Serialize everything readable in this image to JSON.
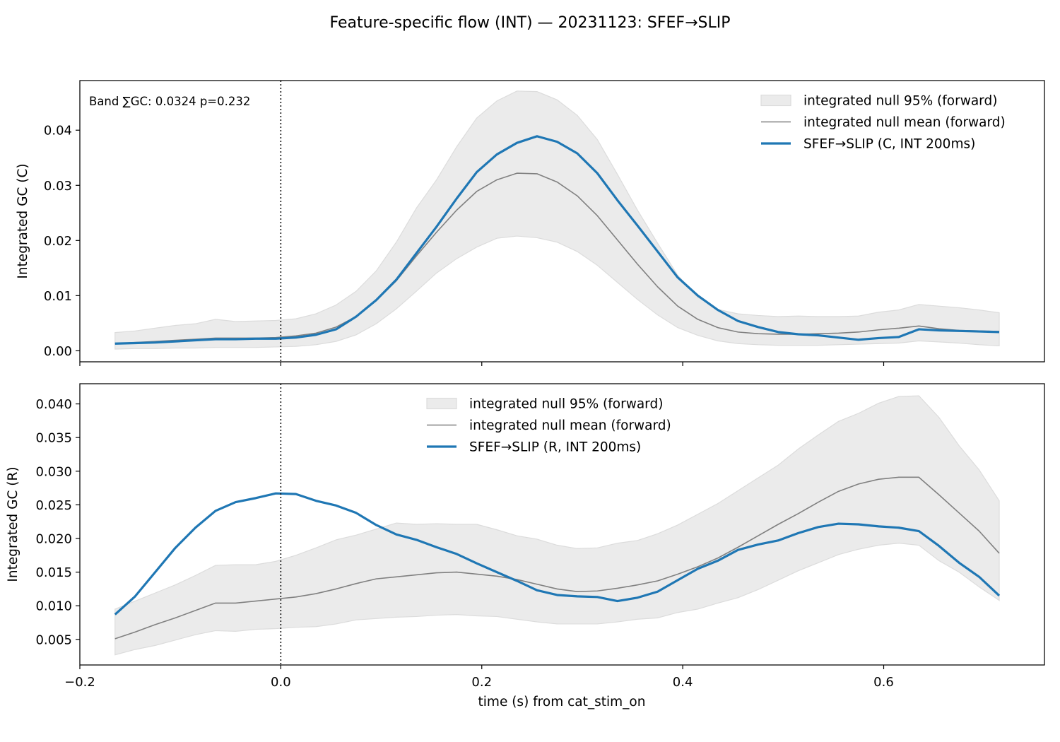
{
  "figure": {
    "title": "Feature-specific flow (INT) — 20231123: SFEF→SLIP",
    "xlabel": "time (s) from cat_stim_on",
    "colors": {
      "band": "#ebebeb",
      "band_edge": "#dcdcdc",
      "null_mean": "#808080",
      "series": "#1f77b4",
      "frame": "#000000"
    }
  },
  "chart_data": [
    {
      "type": "line",
      "ylabel": "Integrated GC (C)",
      "annotation": "Band ∑GC: 0.0324  p=0.232",
      "xlim": [
        -0.2,
        0.76
      ],
      "ylim": [
        -0.002,
        0.049
      ],
      "xticks": [
        -0.2,
        0.0,
        0.2,
        0.4,
        0.6
      ],
      "yticks": [
        0.0,
        0.01,
        0.02,
        0.03,
        0.04
      ],
      "ytick_labels": [
        "0.00",
        "0.01",
        "0.02",
        "0.03",
        "0.04"
      ],
      "show_xtick_labels": false,
      "vline_x": 0.0,
      "legend_position": "upper right",
      "x": [
        -0.165,
        -0.145,
        -0.125,
        -0.105,
        -0.085,
        -0.065,
        -0.045,
        -0.025,
        -0.005,
        0.015,
        0.035,
        0.055,
        0.075,
        0.095,
        0.115,
        0.135,
        0.155,
        0.175,
        0.195,
        0.215,
        0.235,
        0.255,
        0.275,
        0.295,
        0.315,
        0.335,
        0.355,
        0.375,
        0.395,
        0.415,
        0.435,
        0.455,
        0.475,
        0.495,
        0.515,
        0.535,
        0.555,
        0.575,
        0.595,
        0.615,
        0.635,
        0.655,
        0.675,
        0.695,
        0.715
      ],
      "band": {
        "name": "integrated null 95% (forward)",
        "upper": [
          0.0033,
          0.0036,
          0.0041,
          0.0046,
          0.0049,
          0.0057,
          0.0053,
          0.0054,
          0.0055,
          0.0058,
          0.0067,
          0.0083,
          0.0108,
          0.0145,
          0.0197,
          0.0259,
          0.031,
          0.037,
          0.0422,
          0.0453,
          0.0471,
          0.047,
          0.0455,
          0.0427,
          0.0383,
          0.032,
          0.0255,
          0.0195,
          0.0137,
          0.0097,
          0.0075,
          0.0067,
          0.0064,
          0.0062,
          0.0063,
          0.0062,
          0.0062,
          0.0063,
          0.007,
          0.0074,
          0.0084,
          0.0081,
          0.0078,
          0.0074,
          0.0069
        ],
        "lower": [
          0.0003,
          0.0004,
          0.0004,
          0.0005,
          0.0005,
          0.0006,
          0.0006,
          0.0006,
          0.0007,
          0.0008,
          0.0011,
          0.0017,
          0.0029,
          0.0049,
          0.0076,
          0.0108,
          0.0141,
          0.0167,
          0.0188,
          0.0204,
          0.0208,
          0.0205,
          0.0197,
          0.018,
          0.0155,
          0.0124,
          0.0093,
          0.0065,
          0.0042,
          0.0028,
          0.0018,
          0.0013,
          0.0011,
          0.001,
          0.001,
          0.001,
          0.0011,
          0.0012,
          0.0013,
          0.0014,
          0.0018,
          0.0016,
          0.0014,
          0.0011,
          0.0009
        ]
      },
      "series": [
        {
          "name": "integrated null mean (forward)",
          "role": "null_mean",
          "values": [
            0.0013,
            0.0015,
            0.0017,
            0.0019,
            0.0021,
            0.0023,
            0.0023,
            0.0023,
            0.0024,
            0.0027,
            0.0032,
            0.0043,
            0.0062,
            0.0091,
            0.0127,
            0.0172,
            0.0215,
            0.0255,
            0.0289,
            0.031,
            0.0322,
            0.0321,
            0.0306,
            0.0281,
            0.0245,
            0.0201,
            0.0157,
            0.0116,
            0.0081,
            0.0057,
            0.0042,
            0.0034,
            0.0031,
            0.003,
            0.003,
            0.0031,
            0.0032,
            0.0034,
            0.0038,
            0.0041,
            0.0045,
            0.004,
            0.0037,
            0.0036,
            0.0035
          ]
        },
        {
          "name": "SFEF→SLIP (C, INT 200ms)",
          "role": "observed",
          "values": [
            0.0013,
            0.0014,
            0.0015,
            0.0017,
            0.0019,
            0.0021,
            0.0021,
            0.0022,
            0.0022,
            0.0024,
            0.0029,
            0.0039,
            0.0062,
            0.0092,
            0.0129,
            0.0177,
            0.0225,
            0.0276,
            0.0324,
            0.0356,
            0.0377,
            0.0389,
            0.0379,
            0.0358,
            0.0322,
            0.0273,
            0.0227,
            0.018,
            0.0133,
            0.01,
            0.0074,
            0.0054,
            0.0043,
            0.0034,
            0.003,
            0.0028,
            0.0024,
            0.002,
            0.0023,
            0.0025,
            0.0039,
            0.0037,
            0.0036,
            0.0035,
            0.0034
          ]
        }
      ]
    },
    {
      "type": "line",
      "ylabel": "Integrated GC (R)",
      "xlim": [
        -0.2,
        0.76
      ],
      "ylim": [
        0.0012,
        0.043
      ],
      "xticks": [
        -0.2,
        0.0,
        0.2,
        0.4,
        0.6
      ],
      "xtick_labels": [
        "−0.2",
        "0.0",
        "0.2",
        "0.4",
        "0.6"
      ],
      "yticks": [
        0.005,
        0.01,
        0.015,
        0.02,
        0.025,
        0.03,
        0.035,
        0.04
      ],
      "ytick_labels": [
        "0.005",
        "0.010",
        "0.015",
        "0.020",
        "0.025",
        "0.030",
        "0.035",
        "0.040"
      ],
      "show_xtick_labels": true,
      "vline_x": 0.0,
      "legend_position": "upper center",
      "x": [
        -0.165,
        -0.145,
        -0.125,
        -0.105,
        -0.085,
        -0.065,
        -0.045,
        -0.025,
        -0.005,
        0.015,
        0.035,
        0.055,
        0.075,
        0.095,
        0.115,
        0.135,
        0.155,
        0.175,
        0.195,
        0.215,
        0.235,
        0.255,
        0.275,
        0.295,
        0.315,
        0.335,
        0.355,
        0.375,
        0.395,
        0.415,
        0.435,
        0.455,
        0.475,
        0.495,
        0.515,
        0.535,
        0.555,
        0.575,
        0.595,
        0.615,
        0.635,
        0.655,
        0.675,
        0.695,
        0.715
      ],
      "band": {
        "name": "integrated null 95% (forward)",
        "upper": [
          0.0095,
          0.0107,
          0.0119,
          0.0131,
          0.0145,
          0.016,
          0.0161,
          0.0161,
          0.0166,
          0.0175,
          0.0186,
          0.0198,
          0.0205,
          0.0214,
          0.0223,
          0.0221,
          0.0222,
          0.0221,
          0.0221,
          0.0213,
          0.0204,
          0.0199,
          0.019,
          0.0185,
          0.0186,
          0.0193,
          0.0197,
          0.0207,
          0.022,
          0.0236,
          0.0252,
          0.0271,
          0.029,
          0.0309,
          0.0333,
          0.0354,
          0.0374,
          0.0386,
          0.0401,
          0.0411,
          0.0412,
          0.038,
          0.0338,
          0.0302,
          0.0256
        ],
        "lower": [
          0.0027,
          0.0035,
          0.0041,
          0.0049,
          0.0057,
          0.0063,
          0.0062,
          0.0065,
          0.0066,
          0.0068,
          0.0069,
          0.0073,
          0.0079,
          0.0081,
          0.0083,
          0.0084,
          0.0086,
          0.0087,
          0.0085,
          0.0084,
          0.008,
          0.0076,
          0.0073,
          0.0073,
          0.0073,
          0.0076,
          0.008,
          0.0082,
          0.009,
          0.0095,
          0.0104,
          0.0112,
          0.0124,
          0.0138,
          0.0152,
          0.0164,
          0.0176,
          0.0184,
          0.019,
          0.0193,
          0.019,
          0.0167,
          0.015,
          0.0128,
          0.0108
        ]
      },
      "series": [
        {
          "name": "integrated null mean (forward)",
          "role": "null_mean",
          "values": [
            0.0051,
            0.0061,
            0.0072,
            0.0082,
            0.0093,
            0.0104,
            0.0104,
            0.0107,
            0.011,
            0.0113,
            0.0118,
            0.0125,
            0.0133,
            0.014,
            0.0143,
            0.0146,
            0.0149,
            0.015,
            0.0147,
            0.0144,
            0.0139,
            0.0132,
            0.0125,
            0.0121,
            0.0122,
            0.0126,
            0.0131,
            0.0137,
            0.0147,
            0.0158,
            0.0171,
            0.0187,
            0.0204,
            0.0221,
            0.0237,
            0.0254,
            0.027,
            0.0281,
            0.0288,
            0.0291,
            0.0291,
            0.0265,
            0.0238,
            0.0211,
            0.0178
          ]
        },
        {
          "name": "SFEF→SLIP (R, INT 200ms)",
          "role": "observed",
          "values": [
            0.0087,
            0.0114,
            0.015,
            0.0186,
            0.0216,
            0.0241,
            0.0254,
            0.026,
            0.0267,
            0.0266,
            0.0256,
            0.0249,
            0.0238,
            0.022,
            0.0206,
            0.0198,
            0.0187,
            0.0177,
            0.0163,
            0.015,
            0.0137,
            0.0123,
            0.0116,
            0.0114,
            0.0113,
            0.0107,
            0.0112,
            0.0121,
            0.0138,
            0.0155,
            0.0167,
            0.0183,
            0.0191,
            0.0197,
            0.0208,
            0.0217,
            0.0222,
            0.0221,
            0.0218,
            0.0216,
            0.0211,
            0.0189,
            0.0164,
            0.0143,
            0.0115
          ]
        }
      ]
    }
  ]
}
